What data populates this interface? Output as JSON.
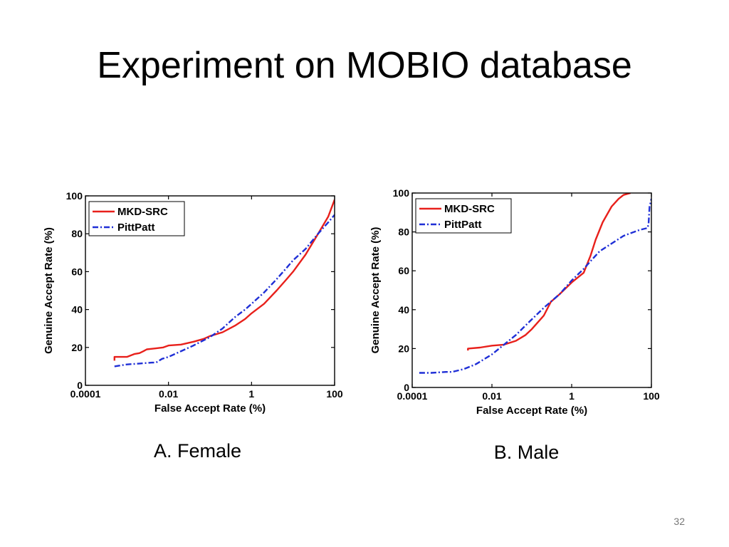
{
  "slide": {
    "title": "Experiment on MOBIO database",
    "page_number": "32",
    "captions": [
      "A. Female",
      "B. Male"
    ]
  },
  "chart_data": [
    {
      "type": "line",
      "title": "",
      "xlabel": "False Accept Rate (%)",
      "ylabel": "Genuine Accept Rate (%)",
      "xscale": "log",
      "xlim": [
        0.0001,
        100
      ],
      "ylim": [
        0,
        100
      ],
      "xticks": [
        0.0001,
        0.01,
        1,
        100
      ],
      "xtick_labels": [
        "0.0001",
        "0.01",
        "1",
        "100"
      ],
      "yticks": [
        0,
        20,
        40,
        60,
        80,
        100
      ],
      "ytick_labels": [
        "0",
        "20",
        "40",
        "60",
        "80",
        "100"
      ],
      "legend_position": "top-left",
      "series": [
        {
          "name": "MKD-SRC",
          "color": "#e8201b",
          "dash": "solid",
          "x": [
            0.0005,
            0.0005,
            0.001,
            0.0015,
            0.002,
            0.0025,
            0.003,
            0.004,
            0.005,
            0.0075,
            0.01,
            0.02,
            0.04,
            0.07,
            0.1,
            0.2,
            0.4,
            0.7,
            1,
            2,
            4,
            7,
            10,
            20,
            40,
            70,
            100
          ],
          "y": [
            13,
            15,
            15,
            16.5,
            17,
            18,
            19,
            19.3,
            19.5,
            20,
            21,
            21.5,
            23,
            24.5,
            26,
            28,
            31.5,
            35,
            38,
            43,
            50,
            56,
            60,
            69,
            80,
            89,
            98
          ]
        },
        {
          "name": "PittPatt",
          "color": "#1f2fd6",
          "dash": "dashdot",
          "x": [
            0.0005,
            0.001,
            0.002,
            0.004,
            0.005,
            0.007,
            0.01,
            0.02,
            0.04,
            0.1,
            0.2,
            0.4,
            0.7,
            1,
            2,
            4,
            7,
            10,
            20,
            40,
            70,
            100
          ],
          "y": [
            10,
            11,
            11.5,
            12,
            12,
            14,
            15,
            18,
            21,
            25.5,
            30,
            36,
            40,
            43,
            49,
            56,
            62,
            66,
            72,
            80,
            86,
            90
          ]
        }
      ]
    },
    {
      "type": "line",
      "title": "",
      "xlabel": "False Accept Rate (%)",
      "ylabel": "Genuine Accept Rate (%)",
      "xscale": "log",
      "xlim": [
        0.0001,
        100
      ],
      "ylim": [
        0,
        100
      ],
      "xticks": [
        0.0001,
        0.01,
        1,
        100
      ],
      "xtick_labels": [
        "0.0001",
        "0.01",
        "1",
        "100"
      ],
      "yticks": [
        0,
        20,
        40,
        60,
        80,
        100
      ],
      "ytick_labels": [
        "0",
        "20",
        "40",
        "60",
        "80",
        "100"
      ],
      "legend_position": "top-left",
      "series": [
        {
          "name": "MKD-SRC",
          "color": "#e8201b",
          "dash": "solid",
          "x": [
            0.0025,
            0.0025,
            0.005,
            0.01,
            0.02,
            0.04,
            0.07,
            0.1,
            0.2,
            0.3,
            0.5,
            1,
            2,
            3,
            4,
            6,
            10,
            15,
            20,
            30
          ],
          "y": [
            19,
            20,
            20.5,
            21.5,
            22,
            24,
            27,
            30,
            37,
            44,
            48,
            54,
            59,
            68,
            76,
            85,
            93,
            97,
            99,
            100
          ]
        },
        {
          "name": "PittPatt",
          "color": "#1f2fd6",
          "dash": "dashdot",
          "x": [
            0.00015,
            0.0003,
            0.0007,
            0.001,
            0.002,
            0.004,
            0.01,
            0.02,
            0.04,
            0.1,
            0.2,
            0.5,
            1,
            2,
            3,
            5,
            10,
            20,
            50,
            80,
            85,
            90,
            100
          ],
          "y": [
            7.5,
            7.5,
            8,
            8,
            9.5,
            12,
            17,
            22,
            27,
            35,
            41,
            48,
            55,
            61,
            65,
            70,
            74,
            78,
            81,
            82,
            84,
            93,
            97
          ]
        }
      ]
    }
  ]
}
